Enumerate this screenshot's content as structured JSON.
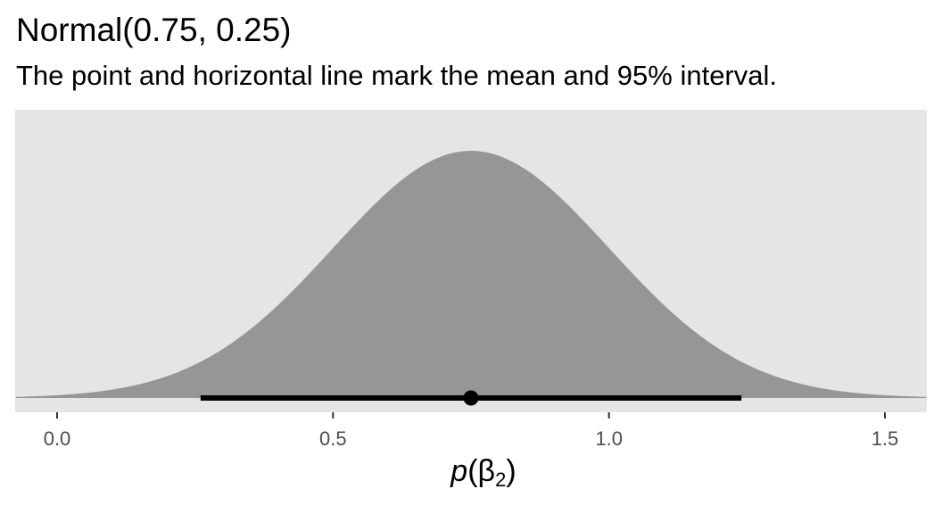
{
  "chart_data": {
    "type": "area",
    "title": "Normal(0.75, 0.25)",
    "subtitle": "The point and horizontal line mark the mean and 95% interval.",
    "distribution": {
      "family": "Normal",
      "mean": 0.75,
      "sd": 0.25
    },
    "mean_point": 0.75,
    "interval_95": [
      0.26,
      1.24
    ],
    "xlabel": {
      "p": "p",
      "open": "(",
      "beta": "β",
      "sub": "2",
      "close": ")"
    },
    "xlim": [
      -0.075,
      1.575
    ],
    "xticks": [
      0.0,
      0.5,
      1.0,
      1.5
    ],
    "xtick_labels": [
      "0.0",
      "0.5",
      "1.0",
      "1.5"
    ],
    "y_axis": "none",
    "grid": false,
    "colors": {
      "panel": "#E5E5E5",
      "fill": "#969696",
      "interval": "#000000",
      "tick_text": "#4D4D4D"
    }
  }
}
